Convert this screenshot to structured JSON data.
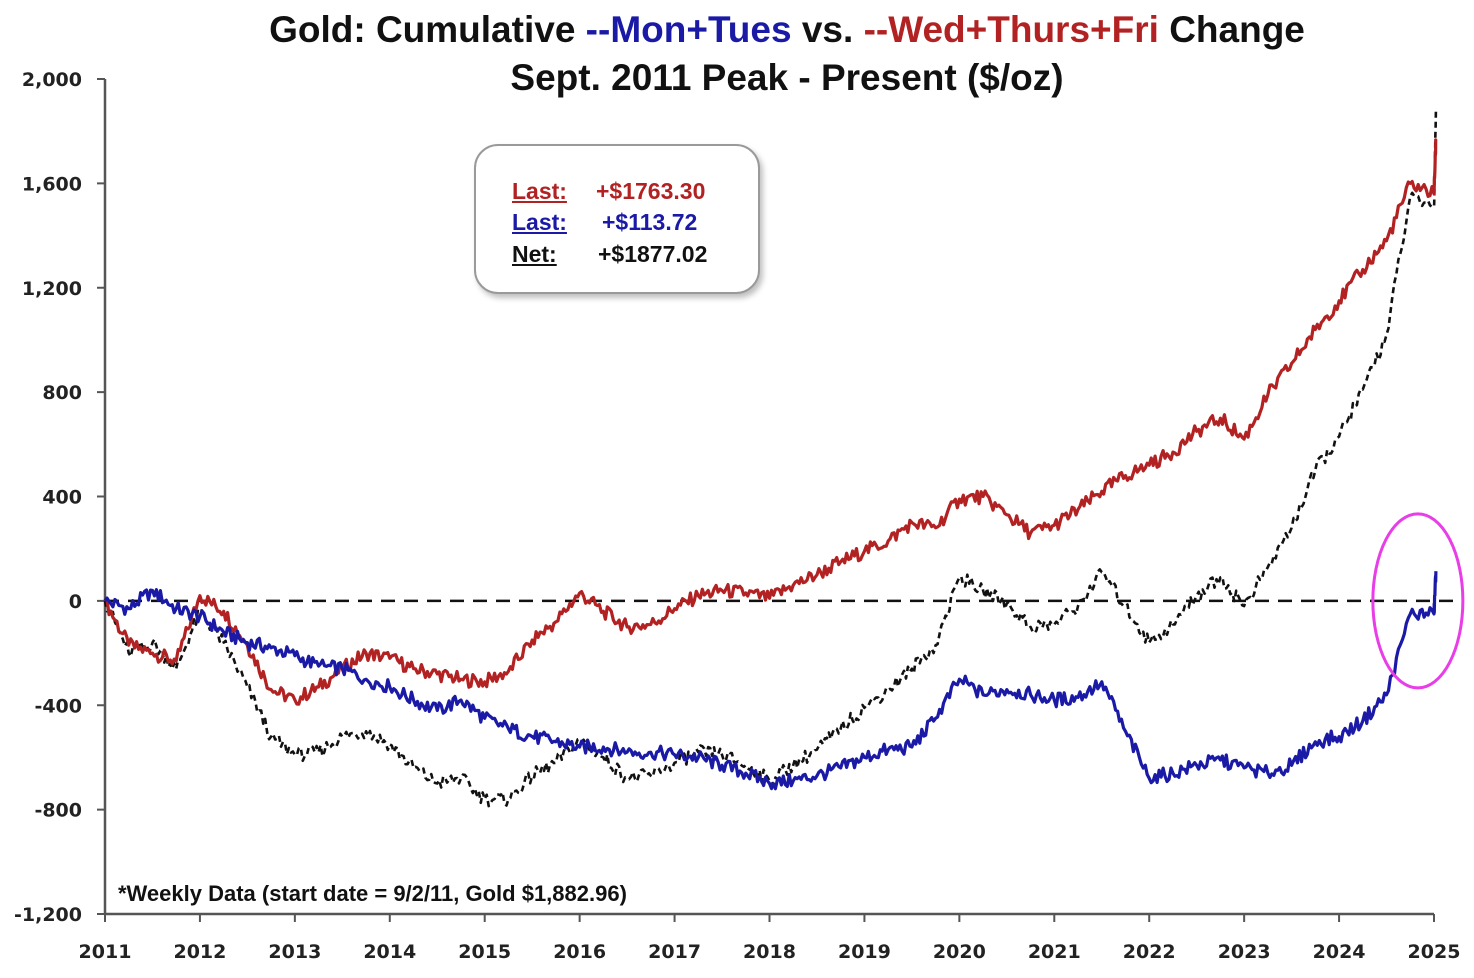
{
  "chart_data": {
    "type": "line",
    "title_parts": [
      {
        "text": "Gold: Cumulative ",
        "color": "#111111"
      },
      {
        "text": "--Mon+Tues",
        "color": "#1a1aa6"
      },
      {
        "text": " vs. ",
        "color": "#111111"
      },
      {
        "text": "--Wed+Thurs+Fri",
        "color": "#b22222"
      },
      {
        "text": " Change",
        "color": "#111111"
      }
    ],
    "subtitle": "Sept. 2011 Peak - Present ($/oz)",
    "xlabel": "",
    "ylabel": "",
    "ylim": [
      -1200,
      2000
    ],
    "xlim": [
      2011,
      2025
    ],
    "yticks": [
      2000,
      1600,
      1200,
      800,
      400,
      0,
      -400,
      -800,
      -1200
    ],
    "ytick_labels": [
      "2,000",
      "1,600",
      "1,200",
      "800",
      "400",
      "0",
      "-400",
      "-800",
      "-1,200"
    ],
    "xticks": [
      2011,
      2012,
      2013,
      2014,
      2015,
      2016,
      2017,
      2018,
      2019,
      2020,
      2021,
      2022,
      2023,
      2024,
      2025
    ],
    "xtick_labels": [
      "2011",
      "2012",
      "2013",
      "2014",
      "2015",
      "2016",
      "2017",
      "2018",
      "2019",
      "2020",
      "2021",
      "2022",
      "2023",
      "2024",
      "2025"
    ],
    "grid": false,
    "zero_line": {
      "value": 0,
      "style": "dashed",
      "color": "#111111"
    },
    "x": [
      2011.0,
      2011.25,
      2011.5,
      2011.75,
      2012.0,
      2012.25,
      2012.5,
      2012.75,
      2013.0,
      2013.25,
      2013.5,
      2013.75,
      2014.0,
      2014.25,
      2014.5,
      2014.75,
      2015.0,
      2015.25,
      2015.5,
      2015.75,
      2016.0,
      2016.25,
      2016.5,
      2016.75,
      2017.0,
      2017.25,
      2017.5,
      2017.75,
      2018.0,
      2018.25,
      2018.5,
      2018.75,
      2019.0,
      2019.25,
      2019.5,
      2019.75,
      2020.0,
      2020.25,
      2020.5,
      2020.75,
      2021.0,
      2021.25,
      2021.5,
      2021.75,
      2022.0,
      2022.25,
      2022.5,
      2022.75,
      2023.0,
      2023.25,
      2023.5,
      2023.75,
      2024.0,
      2024.25,
      2024.5,
      2024.75,
      2025.0,
      2025.02
    ],
    "series": [
      {
        "name": "Wed+Thurs+Fri",
        "color": "#b22222",
        "style": "solid",
        "values": [
          0,
          -170,
          -200,
          -230,
          20,
          -40,
          -170,
          -340,
          -380,
          -330,
          -260,
          -200,
          -220,
          -260,
          -280,
          -300,
          -310,
          -270,
          -150,
          -80,
          30,
          -40,
          -100,
          -90,
          -30,
          20,
          40,
          30,
          10,
          60,
          100,
          150,
          190,
          230,
          300,
          280,
          390,
          400,
          330,
          260,
          290,
          350,
          420,
          480,
          520,
          570,
          650,
          700,
          620,
          790,
          910,
          1040,
          1150,
          1270,
          1380,
          1600,
          1560,
          1763.3
        ]
      },
      {
        "name": "Mon+Tues",
        "color": "#1a1aa6",
        "style": "solid",
        "values": [
          0,
          -30,
          40,
          -30,
          -60,
          -120,
          -160,
          -180,
          -210,
          -250,
          -260,
          -300,
          -330,
          -380,
          -420,
          -380,
          -450,
          -490,
          -520,
          -540,
          -560,
          -560,
          -580,
          -580,
          -590,
          -600,
          -630,
          -660,
          -700,
          -690,
          -670,
          -640,
          -600,
          -570,
          -560,
          -450,
          -300,
          -360,
          -340,
          -360,
          -380,
          -370,
          -310,
          -500,
          -680,
          -660,
          -630,
          -610,
          -640,
          -660,
          -630,
          -540,
          -520,
          -460,
          -360,
          -50,
          -50,
          113.72
        ]
      },
      {
        "name": "Net",
        "color": "#111111",
        "style": "dashed",
        "values": [
          0,
          -200,
          -160,
          -260,
          -40,
          -160,
          -330,
          -520,
          -590,
          -580,
          -520,
          -500,
          -550,
          -640,
          -700,
          -680,
          -760,
          -760,
          -670,
          -620,
          -530,
          -600,
          -680,
          -670,
          -620,
          -580,
          -590,
          -630,
          -690,
          -630,
          -570,
          -490,
          -410,
          -340,
          -260,
          -170,
          90,
          40,
          -10,
          -100,
          -90,
          -20,
          110,
          -20,
          -160,
          -90,
          20,
          90,
          -20,
          130,
          280,
          500,
          630,
          810,
          1020,
          1550,
          1510,
          1877.02
        ]
      }
    ],
    "legend": {
      "placement": "top-center",
      "rows": [
        {
          "label": "Last:",
          "value": "+$1763.30",
          "color": "#b22222"
        },
        {
          "label": "Last:",
          "value": "+$113.72",
          "color": "#1a1aa6"
        },
        {
          "label": "Net:",
          "value": "+$1877.02",
          "color": "#111111"
        }
      ]
    },
    "annotation": "*Weekly Data (start date = 9/2/11, Gold $1,882.96)",
    "highlight": {
      "shape": "ellipse",
      "color": "#e83ee8",
      "x_center": 2024.83,
      "y_center": 0
    }
  }
}
